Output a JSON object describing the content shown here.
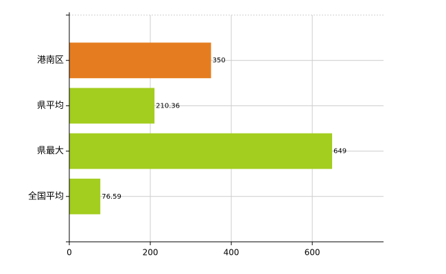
{
  "chart_data": {
    "type": "bar",
    "orientation": "horizontal",
    "categories": [
      "港南区",
      "県平均",
      "県最大",
      "全国平均"
    ],
    "values": [
      350,
      210.36,
      649,
      76.59
    ],
    "colors": [
      "#e57d20",
      "#a3cd1f",
      "#a3cd1f",
      "#a3cd1f"
    ],
    "xlim": [
      0,
      776
    ],
    "xticks": [
      0,
      200,
      400,
      600
    ],
    "grid": true
  }
}
